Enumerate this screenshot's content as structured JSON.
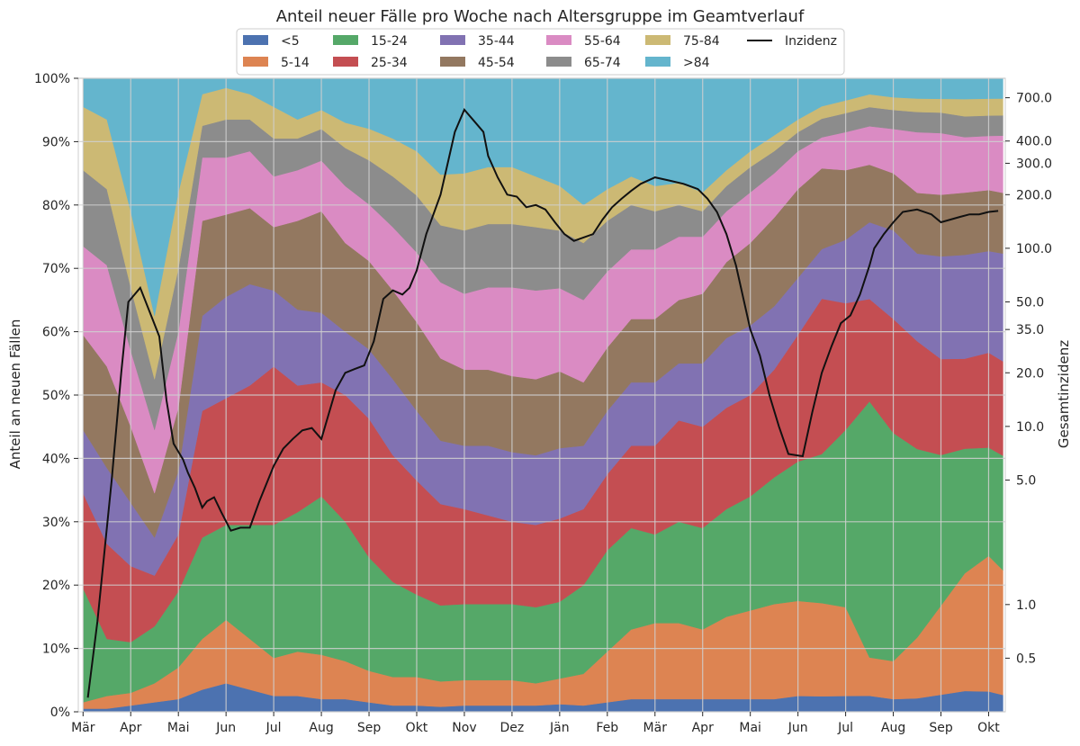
{
  "chart_data": {
    "type": "area",
    "title": "Anteil neuer Fälle pro Woche nach Altersgruppe im Geamtverlauf",
    "ylabel": "Anteil an neuen Fällen",
    "y2label": "Gesamtinzidenz",
    "ylim": [
      0,
      100
    ],
    "y2_scale": "log",
    "y2lim": [
      0.25,
      900
    ],
    "grid": true,
    "legend_position": "top-center",
    "x_tick_labels": [
      "Mär",
      "Apr",
      "Mai",
      "Jun",
      "Jul",
      "Aug",
      "Sep",
      "Okt",
      "Nov",
      "Dez",
      "Jän",
      "Feb",
      "Mär",
      "Apr",
      "Mai",
      "Jun",
      "Jul",
      "Aug",
      "Sep",
      "Okt"
    ],
    "y_tick_labels": [
      "0%",
      "10%",
      "20%",
      "30%",
      "40%",
      "50%",
      "60%",
      "70%",
      "80%",
      "90%",
      "100%"
    ],
    "y2_ticks": [
      0.5,
      1.0,
      5.0,
      10.0,
      20.0,
      35.0,
      50.0,
      100.0,
      200.0,
      300.0,
      400.0,
      700.0
    ],
    "y2_tick_labels": [
      "0.5",
      "1.0",
      "5.0",
      "10.0",
      "20.0",
      "35.0",
      "50.0",
      "100.0",
      "200.0",
      "300.0",
      "400.0",
      "700.0"
    ],
    "x": [
      0,
      0.5,
      1,
      1.5,
      2,
      2.5,
      3,
      3.5,
      4,
      4.5,
      5,
      5.5,
      6,
      6.5,
      7,
      7.5,
      8,
      8.5,
      9,
      9.5,
      10,
      10.5,
      11,
      11.5,
      12,
      12.5,
      13,
      13.5,
      14,
      14.5,
      15,
      15.5,
      16,
      16.5,
      17,
      17.5,
      18,
      18.5,
      19,
      19.3
    ],
    "series": [
      {
        "name": "<5",
        "color": "#4c72b0",
        "values": [
          0.5,
          0.5,
          1,
          1.5,
          2,
          3.5,
          4.5,
          3.5,
          2.5,
          2.5,
          2,
          2,
          1.5,
          1,
          1,
          0.8,
          1,
          1,
          1,
          1,
          1.2,
          1,
          1.5,
          2,
          2,
          2,
          2,
          2,
          2,
          2,
          2.5,
          2.5,
          2.5,
          2.5,
          2,
          2,
          2.5,
          3,
          3,
          2.5
        ]
      },
      {
        "name": "5-14",
        "color": "#dd8452",
        "values": [
          1,
          2,
          2,
          3,
          5,
          8,
          10,
          8,
          6,
          7,
          7,
          6,
          5,
          4.5,
          4.5,
          4,
          4,
          4,
          4,
          3.5,
          4,
          5,
          8,
          11,
          12,
          12,
          11,
          13,
          14,
          15,
          15,
          15,
          14,
          6,
          6,
          9,
          13,
          17,
          20,
          18.5
        ]
      },
      {
        "name": "15-24",
        "color": "#55a868",
        "values": [
          18,
          9,
          8,
          9,
          12,
          16,
          15,
          18,
          21,
          22,
          25,
          22,
          18,
          15,
          13,
          12,
          12,
          12,
          12,
          12,
          12,
          14,
          16,
          16,
          14,
          16,
          16,
          17,
          18,
          20,
          22,
          24,
          28,
          40,
          36,
          28,
          22,
          18,
          16,
          17
        ]
      },
      {
        "name": "25-34",
        "color": "#c44e52",
        "values": [
          15,
          15,
          12,
          8,
          9,
          20,
          20,
          22,
          25,
          20,
          18,
          20,
          22,
          20,
          18,
          16,
          15,
          14,
          13,
          13,
          13,
          12,
          12,
          13,
          14,
          16,
          16,
          16,
          16,
          17,
          20,
          25,
          20,
          16,
          18,
          16,
          14,
          13,
          14,
          14
        ]
      },
      {
        "name": "35-44",
        "color": "#8172b2",
        "values": [
          10,
          12,
          10,
          6,
          10,
          15,
          16,
          16,
          12,
          12,
          11,
          10,
          11,
          12,
          11,
          10,
          10,
          11,
          11,
          11,
          11,
          10,
          10,
          10,
          10,
          9,
          10,
          11,
          11,
          10,
          9,
          8,
          10,
          12,
          14,
          13,
          15,
          15,
          15,
          16
        ]
      },
      {
        "name": "45-54",
        "color": "#937860",
        "values": [
          15,
          16,
          12,
          7,
          10,
          15,
          13,
          12,
          10,
          14,
          16,
          14,
          14,
          14,
          14,
          13,
          12,
          12,
          12,
          12,
          12,
          10,
          10,
          10,
          10,
          10,
          11,
          12,
          13,
          14,
          14,
          13,
          11,
          9,
          9,
          9,
          9,
          9,
          9,
          9
        ]
      },
      {
        "name": "55-64",
        "color": "#da8bc3",
        "values": [
          14,
          16,
          12,
          10,
          12,
          10,
          9,
          9,
          8,
          8,
          8,
          9,
          9,
          10,
          11,
          12,
          12,
          13,
          14,
          14,
          13,
          13,
          12,
          11,
          11,
          10,
          9,
          8,
          8,
          7,
          6,
          5,
          6,
          6,
          7,
          9,
          9,
          8,
          8,
          8.5
        ]
      },
      {
        "name": "65-74",
        "color": "#8c8c8c",
        "values": [
          12,
          12,
          10,
          8,
          10,
          5,
          6,
          5,
          6,
          5,
          5,
          6,
          7,
          8,
          9,
          9,
          10,
          10,
          10,
          10,
          9,
          9,
          8,
          7,
          6,
          5,
          4,
          4,
          4,
          3.5,
          3,
          3,
          3,
          3,
          3,
          3,
          3,
          3,
          3,
          3
        ]
      },
      {
        "name": "75-84",
        "color": "#ccb974",
        "values": [
          10,
          11,
          12,
          10,
          12,
          5,
          5,
          4,
          5,
          3,
          3,
          4,
          5,
          6,
          7,
          8,
          9,
          9,
          9,
          8,
          7,
          6,
          5,
          4.5,
          4,
          3.5,
          3,
          2.5,
          2.5,
          2.5,
          2,
          2,
          2,
          2,
          2,
          2,
          2,
          2.5,
          2.5,
          2.5
        ]
      },
      {
        "name": ">84",
        "color": "#64b5cd",
        "values": [
          4.5,
          6.5,
          21,
          37.5,
          18,
          2.5,
          1.5,
          2.5,
          4.5,
          6.5,
          5,
          7,
          8,
          9.5,
          11.5,
          15.2,
          15,
          14,
          14,
          15.5,
          16.8,
          20,
          17.5,
          15.5,
          17,
          16.5,
          18,
          14.5,
          11.5,
          9,
          6.5,
          4.5,
          3.5,
          2.5,
          3,
          3,
          3,
          3,
          3,
          3
        ]
      }
    ],
    "incidence_line": {
      "name": "Inzidenz",
      "color": "#111111",
      "x": [
        0.1,
        0.3,
        0.6,
        0.8,
        0.95,
        1.2,
        1.6,
        1.75,
        1.9,
        2.1,
        2.2,
        2.35,
        2.45,
        2.5,
        2.6,
        2.75,
        2.9,
        3.1,
        3.3,
        3.5,
        3.7,
        4,
        4.2,
        4.4,
        4.6,
        4.8,
        5,
        5.3,
        5.5,
        5.7,
        5.9,
        6.1,
        6.3,
        6.5,
        6.7,
        6.85,
        7,
        7.2,
        7.5,
        7.8,
        8,
        8.2,
        8.4,
        8.5,
        8.7,
        8.9,
        9.1,
        9.3,
        9.5,
        9.7,
        9.9,
        10.1,
        10.3,
        10.5,
        10.7,
        10.9,
        11.1,
        11.3,
        11.5,
        11.7,
        12,
        12.3,
        12.6,
        12.9,
        13.1,
        13.3,
        13.5,
        13.7,
        14,
        14.2,
        14.4,
        14.6,
        14.8,
        15.1,
        15.3,
        15.5,
        15.7,
        15.9,
        16.1,
        16.3,
        16.5,
        16.6,
        16.8,
        17,
        17.2,
        17.5,
        17.8,
        18,
        18.2,
        18.4,
        18.6,
        18.8,
        19,
        19.2
      ],
      "values": [
        0.3,
        0.8,
        5,
        20,
        50,
        60,
        32,
        14,
        8,
        6.5,
        5.5,
        4.5,
        3.8,
        3.5,
        3.8,
        4.0,
        3.3,
        2.6,
        2.7,
        2.7,
        3.8,
        6,
        7.5,
        8.5,
        9.5,
        9.8,
        8.5,
        16,
        20,
        21,
        22,
        30,
        52,
        58,
        55,
        60,
        75,
        120,
        200,
        450,
        600,
        520,
        450,
        330,
        250,
        200,
        195,
        170,
        175,
        165,
        140,
        120,
        110,
        115,
        120,
        145,
        170,
        190,
        210,
        230,
        250,
        240,
        230,
        215,
        190,
        160,
        120,
        80,
        35,
        25,
        15,
        10,
        7,
        6.8,
        12,
        20,
        28,
        38,
        42,
        55,
        80,
        100,
        120,
        140,
        160,
        165,
        155,
        140,
        145,
        150,
        155,
        155,
        160,
        162
      ]
    }
  }
}
